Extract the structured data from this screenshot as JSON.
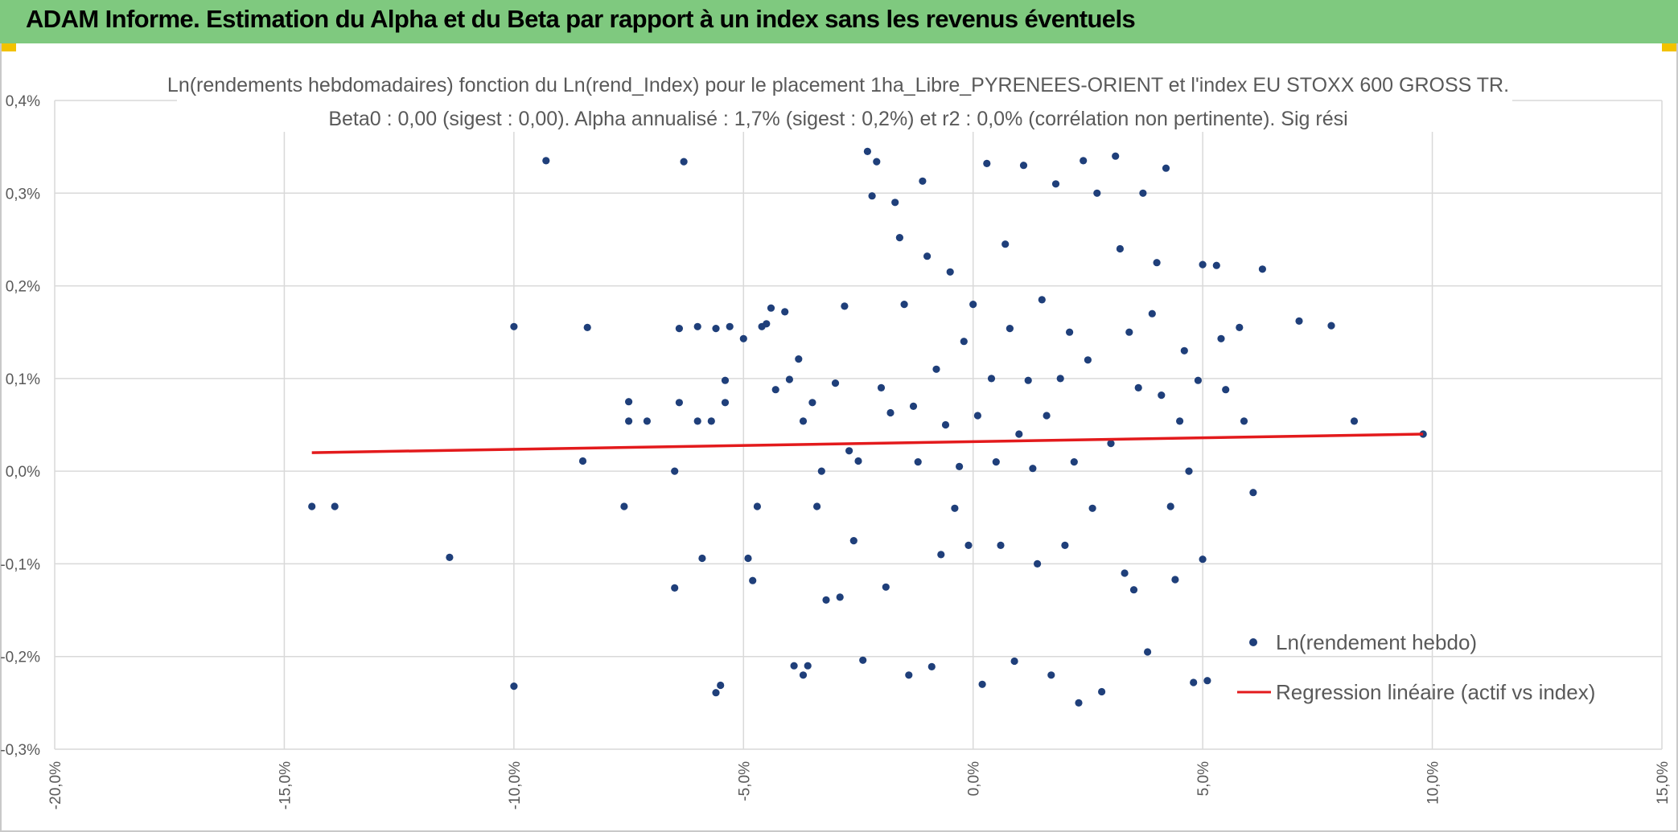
{
  "header": {
    "title": "ADAM Informe. Estimation du Alpha et du Beta par rapport à un index sans les revenus éventuels"
  },
  "colors": {
    "banner": "#7fc97f",
    "points": "#1f3f7a",
    "regression": "#e31a1c",
    "grid": "#d9d9d9",
    "text": "#595959"
  },
  "chart_data": {
    "type": "scatter",
    "title_line1": "Ln(rendements hebdomadaires) fonction du Ln(rend_Index) pour le placement 1ha_Libre_PYRENEES-ORIENT et l'index EU STOXX 600 GROSS TR.",
    "title_line2": "Beta0 : 0,00 (sigest : 0,00). Alpha annualisé : 1,7% (sigest : 0,2%) et r2 : 0,0% (corrélation non pertinente). Sig rési",
    "x_ticks": [
      "-20,0%",
      "-15,0%",
      "-10,0%",
      "-5,0%",
      "0,0%",
      "5,0%",
      "10,0%",
      "15,0%"
    ],
    "y_ticks": [
      "0,4%",
      "0,3%",
      "0,2%",
      "0,1%",
      "0,0%",
      "-0,1%",
      "-0,2%",
      "-0,3%"
    ],
    "xlim": [
      -20,
      15
    ],
    "ylim": [
      -0.3,
      0.4
    ],
    "grid": true,
    "legend_position": "bottom-right",
    "series": [
      {
        "name": "Ln(rendement hebdo)",
        "kind": "scatter",
        "points": [
          [
            -14.4,
            -0.038
          ],
          [
            -13.9,
            -0.038
          ],
          [
            -11.4,
            -0.093
          ],
          [
            -10.0,
            0.156
          ],
          [
            -10.0,
            -0.232
          ],
          [
            -9.3,
            0.335
          ],
          [
            -8.4,
            0.155
          ],
          [
            -8.5,
            0.011
          ],
          [
            -7.6,
            -0.038
          ],
          [
            -7.5,
            0.075
          ],
          [
            -7.5,
            0.054
          ],
          [
            -7.1,
            0.054
          ],
          [
            -6.3,
            0.334
          ],
          [
            -6.5,
            -0.126
          ],
          [
            -6.5,
            0.0
          ],
          [
            -6.4,
            0.154
          ],
          [
            -6.4,
            0.074
          ],
          [
            -6.0,
            0.156
          ],
          [
            -6.0,
            0.054
          ],
          [
            -5.9,
            -0.094
          ],
          [
            -5.6,
            0.154
          ],
          [
            -5.5,
            -0.231
          ],
          [
            -5.6,
            -0.239
          ],
          [
            -5.4,
            0.098
          ],
          [
            -5.4,
            0.074
          ],
          [
            -5.3,
            0.156
          ],
          [
            -5.7,
            0.054
          ],
          [
            -5.0,
            0.143
          ],
          [
            -4.9,
            -0.094
          ],
          [
            -4.8,
            -0.118
          ],
          [
            -4.7,
            -0.038
          ],
          [
            -4.6,
            0.156
          ],
          [
            -4.5,
            0.159
          ],
          [
            -4.4,
            0.176
          ],
          [
            -4.3,
            0.088
          ],
          [
            -4.1,
            0.172
          ],
          [
            -4.0,
            0.099
          ],
          [
            -3.9,
            -0.21
          ],
          [
            -3.8,
            0.121
          ],
          [
            -3.7,
            0.054
          ],
          [
            -3.7,
            -0.22
          ],
          [
            -3.6,
            -0.21
          ],
          [
            -3.5,
            0.074
          ],
          [
            -3.4,
            -0.038
          ],
          [
            -3.3,
            0.0
          ],
          [
            -3.2,
            -0.139
          ],
          [
            -3.0,
            0.095
          ],
          [
            -2.9,
            -0.136
          ],
          [
            -2.8,
            0.178
          ],
          [
            -2.7,
            0.022
          ],
          [
            -2.6,
            -0.075
          ],
          [
            -2.5,
            0.011
          ],
          [
            -2.4,
            -0.204
          ],
          [
            -2.3,
            0.345
          ],
          [
            -2.2,
            0.297
          ],
          [
            -2.1,
            0.334
          ],
          [
            -2.0,
            0.09
          ],
          [
            -1.9,
            -0.125
          ],
          [
            -1.8,
            0.063
          ],
          [
            -1.7,
            0.29
          ],
          [
            -1.6,
            0.252
          ],
          [
            -1.5,
            0.18
          ],
          [
            -1.4,
            -0.22
          ],
          [
            -1.3,
            0.07
          ],
          [
            -1.2,
            0.01
          ],
          [
            -1.1,
            0.313
          ],
          [
            -1.0,
            0.232
          ],
          [
            -0.9,
            -0.211
          ],
          [
            -0.8,
            0.11
          ],
          [
            -0.7,
            -0.09
          ],
          [
            -0.6,
            0.05
          ],
          [
            -0.5,
            0.215
          ],
          [
            -0.4,
            -0.04
          ],
          [
            -0.3,
            0.005
          ],
          [
            -0.2,
            0.14
          ],
          [
            -0.1,
            -0.08
          ],
          [
            0.0,
            0.18
          ],
          [
            0.1,
            0.06
          ],
          [
            0.2,
            -0.23
          ],
          [
            0.3,
            0.332
          ],
          [
            0.4,
            0.1
          ],
          [
            0.5,
            0.01
          ],
          [
            0.6,
            -0.08
          ],
          [
            0.7,
            0.245
          ],
          [
            0.8,
            0.154
          ],
          [
            0.9,
            -0.205
          ],
          [
            1.0,
            0.04
          ],
          [
            1.1,
            0.33
          ],
          [
            1.2,
            0.098
          ],
          [
            1.3,
            0.003
          ],
          [
            1.4,
            -0.1
          ],
          [
            1.5,
            0.185
          ],
          [
            1.6,
            0.06
          ],
          [
            1.7,
            -0.22
          ],
          [
            1.8,
            0.31
          ],
          [
            1.9,
            0.1
          ],
          [
            2.0,
            -0.08
          ],
          [
            2.1,
            0.15
          ],
          [
            2.2,
            0.01
          ],
          [
            2.3,
            -0.25
          ],
          [
            2.4,
            0.335
          ],
          [
            2.5,
            0.12
          ],
          [
            2.6,
            -0.04
          ],
          [
            2.7,
            0.3
          ],
          [
            2.8,
            -0.238
          ],
          [
            3.0,
            0.03
          ],
          [
            3.1,
            0.34
          ],
          [
            3.2,
            0.24
          ],
          [
            3.3,
            -0.11
          ],
          [
            3.4,
            0.15
          ],
          [
            3.5,
            -0.128
          ],
          [
            3.6,
            0.09
          ],
          [
            3.7,
            0.3
          ],
          [
            3.8,
            -0.195
          ],
          [
            3.9,
            0.17
          ],
          [
            4.0,
            0.225
          ],
          [
            4.1,
            0.082
          ],
          [
            4.2,
            0.327
          ],
          [
            4.3,
            -0.038
          ],
          [
            4.4,
            -0.117
          ],
          [
            4.5,
            0.054
          ],
          [
            4.6,
            0.13
          ],
          [
            4.7,
            0.0
          ],
          [
            4.8,
            -0.228
          ],
          [
            4.9,
            0.098
          ],
          [
            5.0,
            0.223
          ],
          [
            5.0,
            -0.095
          ],
          [
            5.1,
            -0.226
          ],
          [
            5.3,
            0.222
          ],
          [
            5.4,
            0.143
          ],
          [
            5.5,
            0.088
          ],
          [
            5.8,
            0.155
          ],
          [
            5.9,
            0.054
          ],
          [
            6.1,
            -0.023
          ],
          [
            6.3,
            0.218
          ],
          [
            7.1,
            0.162
          ],
          [
            7.8,
            0.157
          ],
          [
            8.3,
            0.054
          ],
          [
            9.8,
            0.04
          ]
        ]
      },
      {
        "name": "Regression linéaire (actif vs index)",
        "kind": "line",
        "x": [
          -14.4,
          9.8
        ],
        "y": [
          0.02,
          0.04
        ]
      }
    ]
  }
}
